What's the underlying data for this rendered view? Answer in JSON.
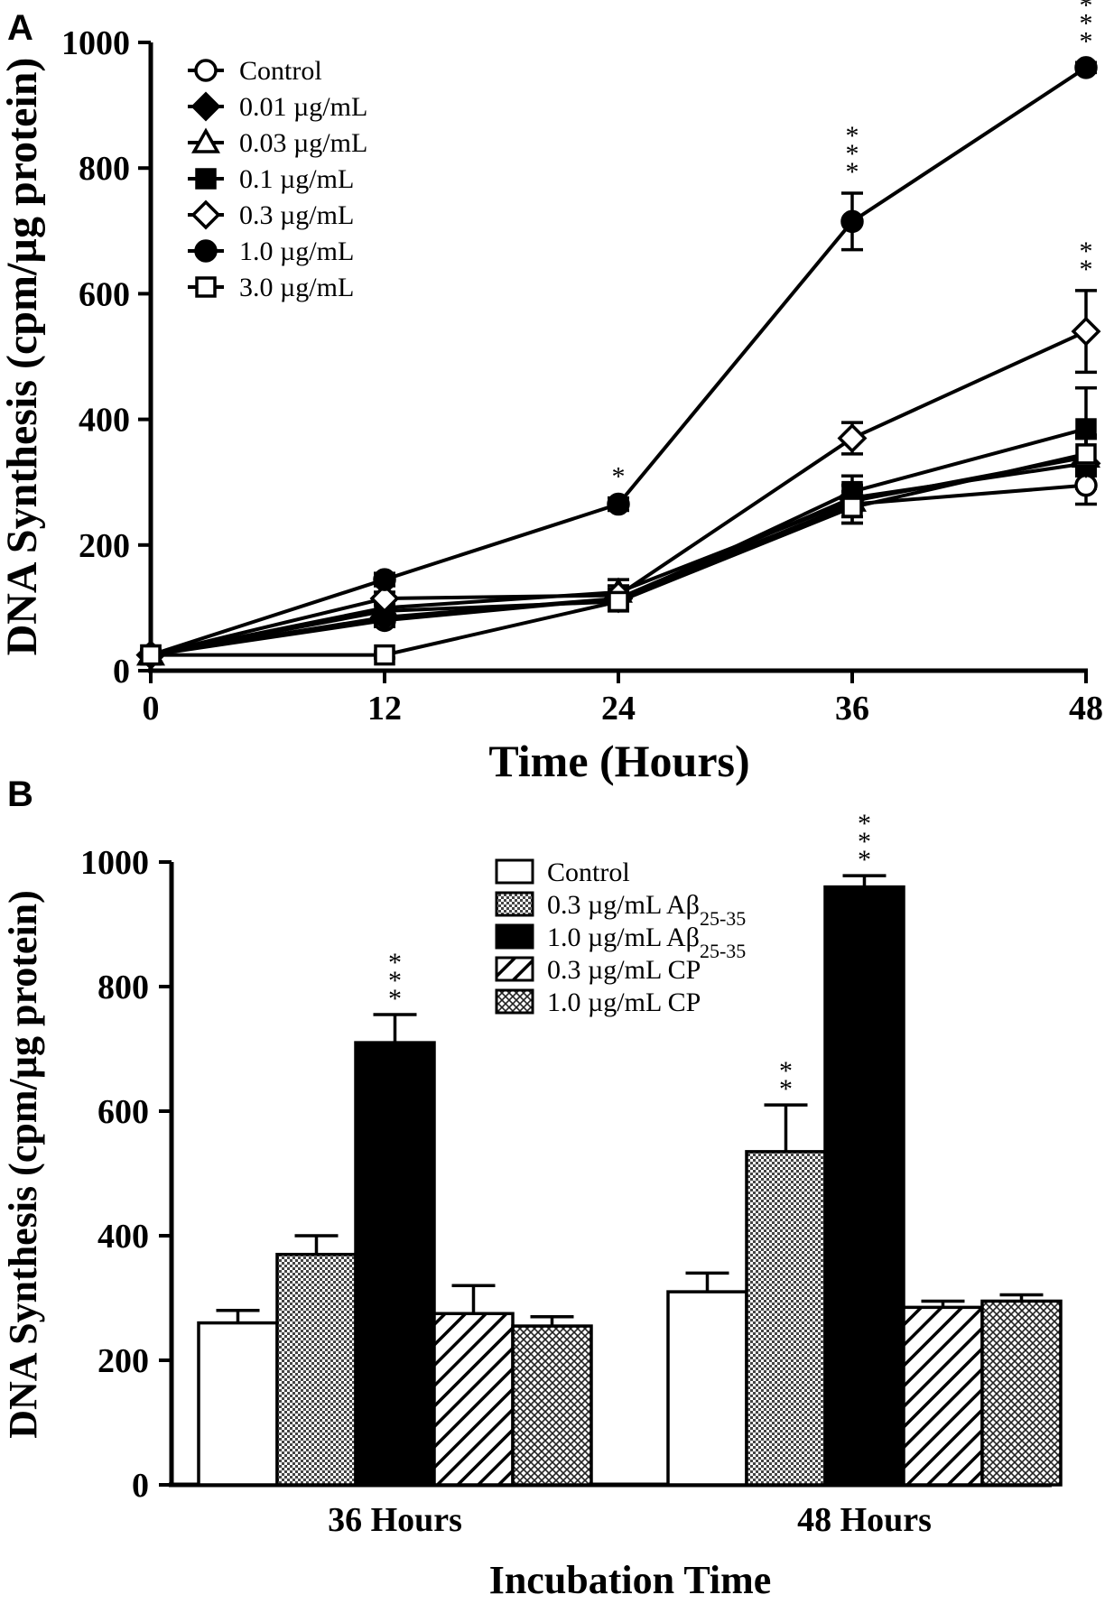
{
  "chart_data": [
    {
      "panel": "A",
      "type": "line",
      "xlabel": "Time (Hours)",
      "ylabel": "DNA Synthesis (cpm/µg protein)",
      "xlim": [
        0,
        48
      ],
      "ylim": [
        0,
        1000
      ],
      "x_ticks": [
        0,
        12,
        24,
        36,
        48
      ],
      "y_ticks": [
        0,
        200,
        400,
        600,
        800,
        1000
      ],
      "x": [
        0,
        12,
        24,
        36,
        48
      ],
      "series": [
        {
          "name": "Control",
          "marker": "circle-open",
          "values": [
            25,
            80,
            115,
            265,
            295
          ],
          "errors": [
            8,
            10,
            15,
            30,
            30
          ],
          "sig": [
            "",
            "",
            "",
            "",
            ""
          ]
        },
        {
          "name": "0.01 µg/mL",
          "marker": "diamond-filled",
          "values": [
            25,
            85,
            115,
            275,
            330
          ],
          "errors": [
            5,
            10,
            10,
            20,
            40
          ],
          "sig": [
            "",
            "",
            "",
            "",
            ""
          ]
        },
        {
          "name": "0.03 µg/mL",
          "marker": "triangle-open",
          "values": [
            25,
            100,
            125,
            270,
            340
          ],
          "errors": [
            5,
            15,
            20,
            25,
            30
          ],
          "sig": [
            "",
            "",
            "",
            "",
            ""
          ]
        },
        {
          "name": "0.1 µg/mL",
          "marker": "square-filled",
          "values": [
            25,
            95,
            110,
            285,
            385
          ],
          "errors": [
            5,
            10,
            15,
            25,
            65
          ],
          "sig": [
            "",
            "",
            "",
            "",
            ""
          ]
        },
        {
          "name": "0.3 µg/mL",
          "marker": "diamond-open",
          "values": [
            25,
            115,
            120,
            370,
            540
          ],
          "errors": [
            5,
            10,
            15,
            25,
            65
          ],
          "sig": [
            "",
            "",
            "",
            "",
            "**"
          ]
        },
        {
          "name": "1.0 µg/mL",
          "marker": "circle-filled",
          "values": [
            25,
            145,
            265,
            715,
            960
          ],
          "errors": [
            5,
            10,
            10,
            45,
            8
          ],
          "sig": [
            "",
            "",
            "*",
            "***",
            "***"
          ]
        },
        {
          "name": "3.0 µg/mL",
          "marker": "square-open",
          "values": [
            25,
            25,
            110,
            260,
            345
          ],
          "errors": [
            5,
            5,
            10,
            25,
            30
          ],
          "sig": [
            "",
            "",
            "",
            "",
            ""
          ]
        }
      ]
    },
    {
      "panel": "B",
      "type": "bar",
      "xlabel": "Incubation Time",
      "ylabel": "DNA Synthesis (cpm/µg protein)",
      "ylim": [
        0,
        1000
      ],
      "y_ticks": [
        0,
        200,
        400,
        600,
        800,
        1000
      ],
      "categories": [
        "36 Hours",
        "48 Hours"
      ],
      "series": [
        {
          "name": "Control",
          "legend_main": "Control",
          "legend_sub": "",
          "pattern": "white",
          "values": [
            260,
            310
          ],
          "errors": [
            20,
            30
          ],
          "sig": [
            "",
            ""
          ]
        },
        {
          "name": "0.3 µg/mL Aβ25-35",
          "legend_main": "0.3 µg/mL Aβ",
          "legend_sub": "25-35",
          "pattern": "dots",
          "values": [
            370,
            535
          ],
          "errors": [
            30,
            75
          ],
          "sig": [
            "",
            "**"
          ]
        },
        {
          "name": "1.0 µg/mL Aβ25-35",
          "legend_main": "1.0 µg/mL Aβ",
          "legend_sub": "25-35",
          "pattern": "black",
          "values": [
            710,
            960
          ],
          "errors": [
            45,
            18
          ],
          "sig": [
            "***",
            "***"
          ]
        },
        {
          "name": "0.3 µg/mL CP",
          "legend_main": "0.3 µg/mL CP",
          "legend_sub": "",
          "pattern": "hatch",
          "values": [
            275,
            285
          ],
          "errors": [
            45,
            10
          ],
          "sig": [
            "",
            ""
          ]
        },
        {
          "name": "1.0 µg/mL CP",
          "legend_main": "1.0 µg/mL CP",
          "legend_sub": "",
          "pattern": "crosshatch",
          "values": [
            255,
            295
          ],
          "errors": [
            15,
            10
          ],
          "sig": [
            "",
            ""
          ]
        }
      ]
    }
  ],
  "panels": {
    "a_label": "A",
    "b_label": "B"
  }
}
